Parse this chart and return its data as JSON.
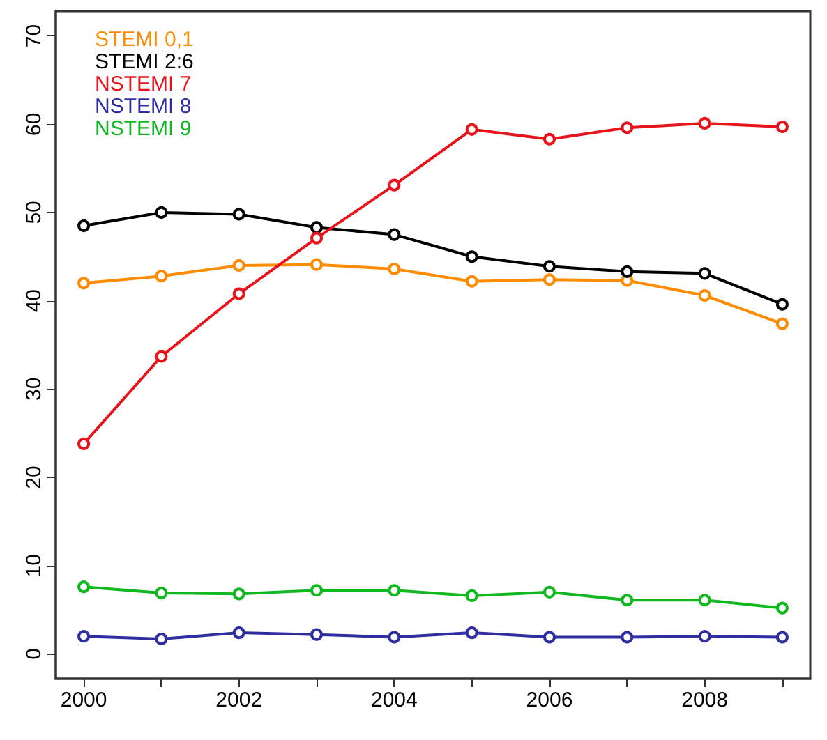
{
  "chart_data": {
    "type": "line",
    "x": [
      2000,
      2001,
      2002,
      2003,
      2004,
      2005,
      2006,
      2007,
      2008,
      2009
    ],
    "series": [
      {
        "name": "STEMI 0,1",
        "color": "#ff8c00",
        "values": [
          42,
          42.8,
          44,
          44.1,
          43.6,
          42.2,
          42.4,
          42.3,
          40.6,
          37.4
        ]
      },
      {
        "name": "STEMI 2:6",
        "color": "#000000",
        "values": [
          48.5,
          50,
          49.8,
          48.3,
          47.5,
          45,
          43.9,
          43.3,
          43.1,
          39.6
        ]
      },
      {
        "name": "NSTEMI 7",
        "color": "#e8141c",
        "values": [
          23.8,
          33.7,
          40.8,
          47.1,
          53.1,
          59.4,
          58.3,
          59.6,
          60.1,
          59.7
        ]
      },
      {
        "name": "NSTEMI 8",
        "color": "#2e2ea0",
        "values": [
          2,
          1.7,
          2.4,
          2.2,
          1.9,
          2.4,
          1.9,
          1.9,
          2,
          1.9
        ]
      },
      {
        "name": "NSTEMI 9",
        "color": "#10b820",
        "values": [
          7.6,
          6.9,
          6.8,
          7.2,
          7.2,
          6.6,
          7,
          6.1,
          6.1,
          5.2
        ]
      }
    ],
    "xlim": [
      1999.64,
      2009.36
    ],
    "xticks": [
      2000,
      {
        "value": 2001,
        "label": null
      },
      2002,
      {
        "value": 2003,
        "label": null
      },
      2004,
      {
        "value": 2005,
        "label": null
      },
      2006,
      {
        "value": 2007,
        "label": null
      },
      2008,
      {
        "value": 2009,
        "label": null
      }
    ],
    "ylim": [
      -2.8,
      72.8
    ],
    "yticks": [
      0,
      10,
      20,
      30,
      40,
      50,
      60,
      70
    ],
    "grid": false,
    "legend": "top left",
    "marker": "circle",
    "line_style": "solid"
  }
}
